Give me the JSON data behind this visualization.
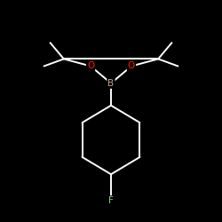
{
  "background_color": "#000000",
  "bond_color": "#ffffff",
  "atom_B_color": "#c8a090",
  "atom_O_color": "#ff2000",
  "atom_F_color": "#80cc80",
  "atom_B_label": "B",
  "atom_O_label": "O",
  "atom_F_label": "F",
  "line_width": 1.4,
  "font_size_atom": 7.5,
  "figsize": [
    2.5,
    2.5
  ],
  "dpi": 100,
  "xlim": [
    -1.8,
    1.8
  ],
  "ylim": [
    -2.2,
    1.8
  ]
}
